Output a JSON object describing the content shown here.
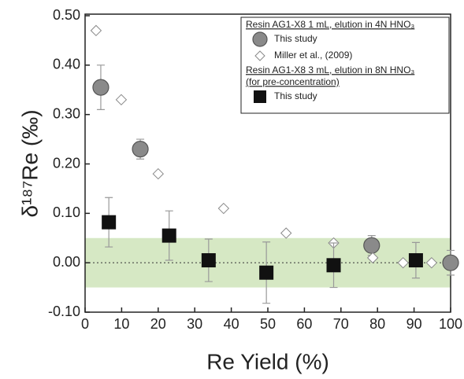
{
  "chart_data": {
    "type": "scatter",
    "xlabel": "Re Yield (%)",
    "ylabel": "δ¹⁸⁷Re (‰)",
    "xlim": [
      0,
      100
    ],
    "xticks": [
      0,
      10,
      20,
      30,
      40,
      50,
      60,
      70,
      80,
      90,
      100
    ],
    "ylim": [
      -0.1,
      0.5
    ],
    "yticks": [
      {
        "value": -0.1,
        "label": "-0.10"
      },
      {
        "value": 0,
        "label": "0.00"
      },
      {
        "value": 0.1,
        "label": "0.10"
      },
      {
        "value": 0.2,
        "label": "0.20"
      },
      {
        "value": 0.3,
        "label": "0.30"
      },
      {
        "value": 0.4,
        "label": "0.40"
      },
      {
        "value": 0.5,
        "label": "0.50"
      }
    ],
    "band": [
      -0.05,
      0.05
    ],
    "band_color": "#d6e8c4",
    "zero_line": true,
    "groups": [
      {
        "title": "Resin AG1-X8 1 mL, elution in 4N HNO₃",
        "series": [
          {
            "name": "This study",
            "marker": "circle",
            "color": "#8a8a8a",
            "x": [
              4.3,
              15.1,
              78.4,
              100
            ],
            "values": [
              0.355,
              0.23,
              0.035,
              0.0
            ],
            "errors": [
              0.045,
              0.02,
              0.02,
              0.025
            ]
          },
          {
            "name": "Miller et al., (2009)",
            "marker": "diamond",
            "color": "#ffffff",
            "x": [
              3,
              9.9,
              20,
              37.9,
              55,
              68,
              78.7,
              87,
              94.8
            ],
            "values": [
              0.47,
              0.33,
              0.18,
              0.11,
              0.06,
              0.04,
              0.01,
              0.0,
              0.0
            ]
          }
        ]
      },
      {
        "title": "Resin AG1-X8 3 mL, elution in 8N HNO₃",
        "subtitle": "(for pre-concentration)",
        "series": [
          {
            "name": "This study",
            "marker": "square",
            "color": "#111111",
            "x": [
              6.5,
              23,
              33.8,
              49.6,
              68,
              90.5
            ],
            "values": [
              0.082,
              0.055,
              0.005,
              -0.02,
              -0.005,
              0.005
            ],
            "errors": [
              0.05,
              0.05,
              0.043,
              0.062,
              0.045,
              0.036
            ]
          }
        ]
      }
    ]
  }
}
